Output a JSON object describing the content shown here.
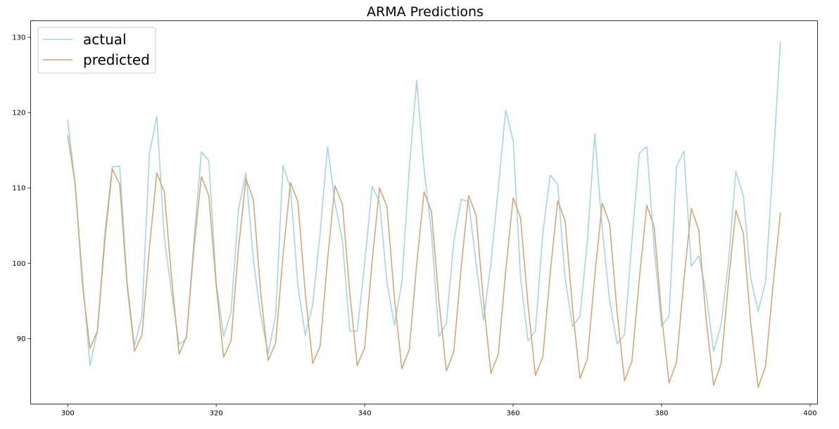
{
  "chart_data": {
    "type": "line",
    "title": "ARMA Predictions",
    "xlabel": "",
    "ylabel": "",
    "xlim": [
      295,
      401
    ],
    "ylim": [
      81.3,
      132.2
    ],
    "xticks": [
      300,
      320,
      340,
      360,
      380,
      400
    ],
    "yticks": [
      90,
      100,
      110,
      120,
      130
    ],
    "grid": false,
    "legend_position": "top-left",
    "x": [
      300,
      301,
      302,
      303,
      304,
      305,
      306,
      307,
      308,
      309,
      310,
      311,
      312,
      313,
      314,
      315,
      316,
      317,
      318,
      319,
      320,
      321,
      322,
      323,
      324,
      325,
      326,
      327,
      328,
      329,
      330,
      331,
      332,
      333,
      334,
      335,
      336,
      337,
      338,
      339,
      340,
      341,
      342,
      343,
      344,
      345,
      346,
      347,
      348,
      349,
      350,
      351,
      352,
      353,
      354,
      355,
      356,
      357,
      358,
      359,
      360,
      361,
      362,
      363,
      364,
      365,
      366,
      367,
      368,
      369,
      370,
      371,
      372,
      373,
      374,
      375,
      376,
      377,
      378,
      379,
      380,
      381,
      382,
      383,
      384,
      385,
      386,
      387,
      388,
      389,
      390,
      391,
      392,
      393,
      394,
      395,
      396
    ],
    "series": [
      {
        "name": "actual",
        "color": "#a8d4e0",
        "values": [
          119,
          110.5,
          98,
          86.4,
          91,
          104,
          112.8,
          112.9,
          97.5,
          89,
          93,
          114.5,
          119.5,
          103.5,
          96,
          89.2,
          90,
          103,
          114.8,
          113.6,
          97.5,
          90.3,
          93.5,
          107.2,
          112,
          100.5,
          93,
          88,
          93,
          113,
          110,
          97,
          90.4,
          94.5,
          104,
          115.5,
          108,
          103,
          91,
          91,
          100,
          110.2,
          108.2,
          97.5,
          91.8,
          97.4,
          112.5,
          124.3,
          112.5,
          104,
          90.3,
          92,
          102.8,
          108.5,
          108.2,
          100,
          92.4,
          100,
          110,
          120.3,
          116.3,
          98,
          89.7,
          91,
          104,
          111.7,
          110.5,
          98,
          91.6,
          93,
          103,
          117.2,
          104.5,
          95,
          89.3,
          90.5,
          103,
          114.6,
          115.5,
          102,
          91.6,
          93,
          112.8,
          114.9,
          99.6,
          101,
          96,
          88.3,
          91.8,
          100,
          112.2,
          109,
          98,
          93.6,
          97.5,
          113,
          129.4
        ]
      },
      {
        "name": "predicted",
        "color": "#d1a77c",
        "values": [
          117,
          110.5,
          97,
          88.7,
          91,
          103,
          112.5,
          110.5,
          97,
          88.3,
          90.5,
          102,
          112,
          109.5,
          98,
          87.9,
          90.3,
          102,
          111.5,
          109,
          97,
          87.5,
          89.7,
          102,
          111.2,
          108.5,
          96,
          87.1,
          89.4,
          101,
          110.7,
          108.2,
          96,
          86.7,
          89,
          100.5,
          110.3,
          107.8,
          96,
          86.4,
          88.8,
          100.2,
          110,
          107.5,
          95.5,
          86,
          88.5,
          99.8,
          109.5,
          106.8,
          95,
          85.7,
          88.2,
          99.5,
          109,
          106.4,
          95,
          85.4,
          87.9,
          99,
          108.7,
          106,
          94.5,
          85.1,
          87.6,
          98.8,
          108.3,
          105.6,
          94,
          84.7,
          87.3,
          98.4,
          108,
          105.2,
          93.5,
          84.4,
          87,
          98,
          107.7,
          104.8,
          93,
          84.1,
          86.8,
          97.8,
          107.3,
          104.4,
          92.5,
          83.8,
          86.6,
          97.5,
          107,
          104,
          92,
          83.5,
          86.3,
          97,
          106.7
        ]
      }
    ]
  }
}
